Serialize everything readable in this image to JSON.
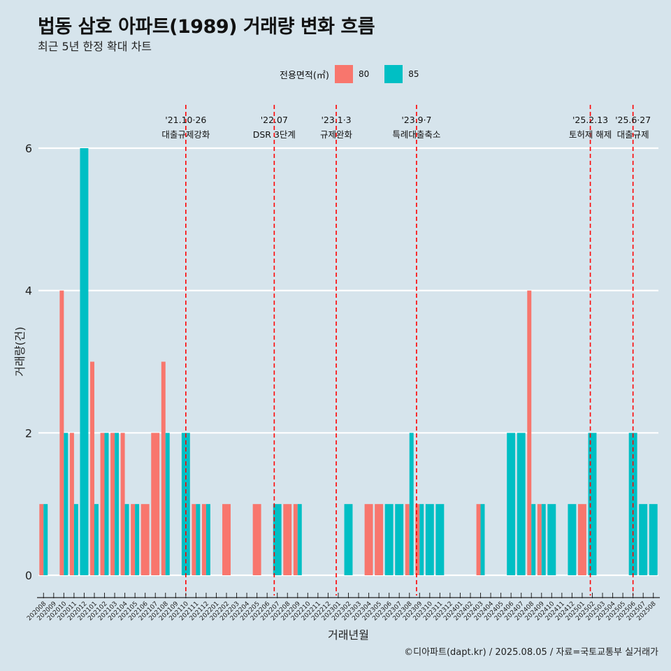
{
  "header": {
    "title": "법동 삼호 아파트(1989) 거래량 변화 흐름",
    "subtitle": "최근 5년 한정 확대 차트"
  },
  "legend": {
    "title": "전용면적(㎡)",
    "items": [
      {
        "label": "80",
        "color": "#f8766d"
      },
      {
        "label": "85",
        "color": "#00bfc4"
      }
    ]
  },
  "caption": "©디아파트(dapt.kr) / 2025.08.05 / 자료=국토교통부 실거래가",
  "chart_data": {
    "type": "bar",
    "xlabel": "거래년월",
    "ylabel": "거래량(건)",
    "ylim": [
      0,
      6
    ],
    "yticks": [
      0,
      2,
      4,
      6
    ],
    "categories": [
      "202008",
      "202009",
      "202010",
      "202011",
      "202012",
      "202101",
      "202102",
      "202103",
      "202104",
      "202105",
      "202106",
      "202107",
      "202108",
      "202109",
      "202110",
      "202111",
      "202112",
      "202201",
      "202202",
      "202203",
      "202204",
      "202205",
      "202206",
      "202207",
      "202208",
      "202209",
      "202210",
      "202211",
      "202212",
      "202301",
      "202302",
      "202303",
      "202304",
      "202305",
      "202306",
      "202307",
      "202308",
      "202309",
      "202310",
      "202311",
      "202312",
      "202401",
      "202402",
      "202403",
      "202404",
      "202405",
      "202406",
      "202407",
      "202408",
      "202409",
      "202410",
      "202411",
      "202412",
      "202501",
      "202502",
      "202503",
      "202504",
      "202505",
      "202506",
      "202507",
      "202508"
    ],
    "series": [
      {
        "name": "80",
        "color": "#f8766d",
        "values": [
          1,
          0,
          4,
          2,
          0,
          3,
          2,
          2,
          2,
          1,
          1,
          2,
          3,
          0,
          0,
          1,
          1,
          0,
          1,
          0,
          0,
          1,
          0,
          0,
          1,
          1,
          0,
          0,
          0,
          0,
          0,
          0,
          1,
          1,
          0,
          0,
          1,
          1,
          0,
          0,
          0,
          0,
          0,
          1,
          0,
          0,
          0,
          0,
          4,
          1,
          0,
          0,
          0,
          1,
          0,
          0,
          0,
          0,
          0,
          0,
          0
        ]
      },
      {
        "name": "85",
        "color": "#00bfc4",
        "values": [
          1,
          0,
          2,
          1,
          6,
          1,
          2,
          2,
          1,
          1,
          0,
          0,
          2,
          0,
          2,
          1,
          1,
          0,
          0,
          0,
          0,
          0,
          0,
          1,
          0,
          1,
          0,
          0,
          0,
          0,
          1,
          0,
          0,
          0,
          1,
          1,
          2,
          1,
          1,
          1,
          0,
          0,
          0,
          1,
          0,
          0,
          2,
          2,
          1,
          1,
          1,
          0,
          1,
          0,
          2,
          0,
          0,
          0,
          2,
          1,
          1
        ]
      }
    ],
    "events": [
      {
        "after": "202110",
        "offset": 0.0,
        "date": "'21.10·26",
        "label": "대출규제강화"
      },
      {
        "after": "202207",
        "offset": -0.3,
        "date": "'22.07",
        "label": "DSR 3단계"
      },
      {
        "after": "202301",
        "offset": -0.2,
        "date": "'23.1·3",
        "label": "규제완화"
      },
      {
        "after": "202309",
        "offset": -0.3,
        "date": "'23.9·7",
        "label": "특례대출축소"
      },
      {
        "after": "202502",
        "offset": -0.2,
        "date": "'25.2.13",
        "label": "토허제 해제"
      },
      {
        "after": "202506",
        "offset": 0.0,
        "date": "'25.6·27",
        "label": "대출규제"
      }
    ]
  }
}
